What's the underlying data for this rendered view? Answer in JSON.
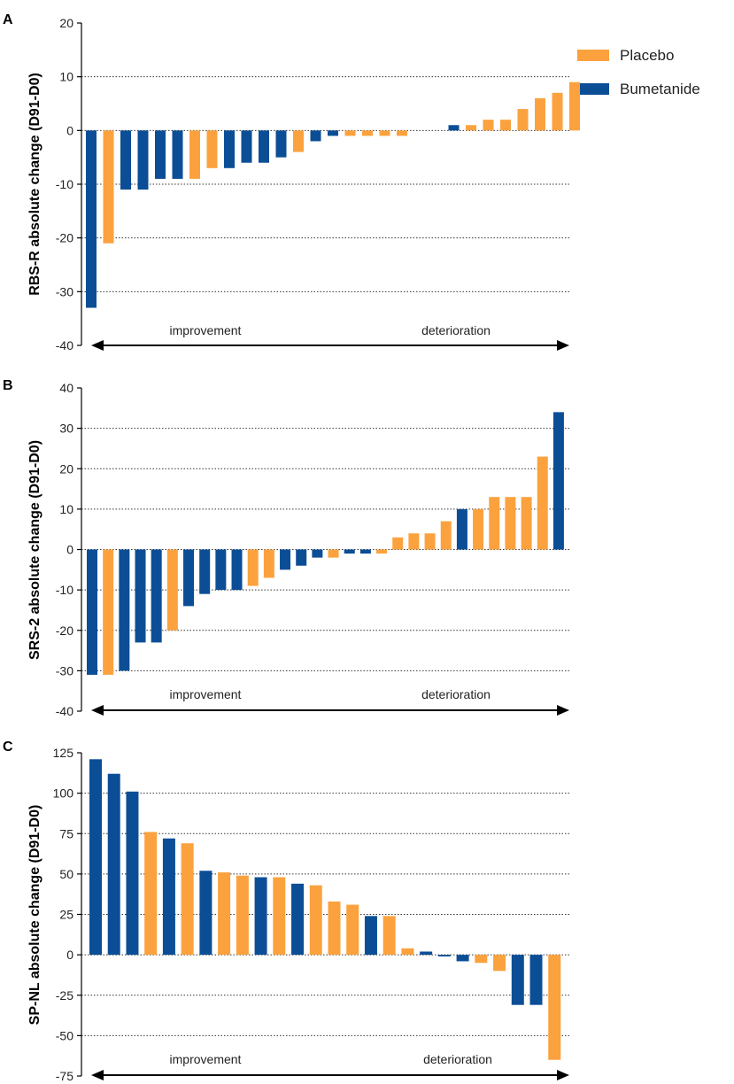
{
  "legend": {
    "items": [
      {
        "label": "Placebo",
        "color": "#FBA23E"
      },
      {
        "label": "Bumetanide",
        "color": "#0B4E96"
      }
    ]
  },
  "colors": {
    "placebo": "#FBA23E",
    "bumetanide": "#0B4E96",
    "axis": "#000000",
    "grid": "#333333"
  },
  "chart_data": [
    {
      "panel": "A",
      "type": "bar",
      "ylabel": "RBS-R absolute change (D91-D0)",
      "ylim": [
        -40,
        20
      ],
      "yticks": [
        -40,
        -30,
        -20,
        -10,
        0,
        10,
        20
      ],
      "tick_labels": [
        "-40",
        "-30",
        "-20",
        "-10",
        "0",
        "10",
        "20"
      ],
      "gridlines": [
        -30,
        -20,
        -10,
        0,
        10
      ],
      "arrow_labels": {
        "left": "improvement",
        "right": "deterioration"
      },
      "bars": [
        {
          "group": "Bumetanide",
          "value": -33
        },
        {
          "group": "Placebo",
          "value": -21
        },
        {
          "group": "Bumetanide",
          "value": -11
        },
        {
          "group": "Bumetanide",
          "value": -11
        },
        {
          "group": "Bumetanide",
          "value": -9
        },
        {
          "group": "Bumetanide",
          "value": -9
        },
        {
          "group": "Placebo",
          "value": -9
        },
        {
          "group": "Placebo",
          "value": -7
        },
        {
          "group": "Bumetanide",
          "value": -7
        },
        {
          "group": "Bumetanide",
          "value": -6
        },
        {
          "group": "Bumetanide",
          "value": -6
        },
        {
          "group": "Bumetanide",
          "value": -5
        },
        {
          "group": "Placebo",
          "value": -4
        },
        {
          "group": "Bumetanide",
          "value": -2
        },
        {
          "group": "Bumetanide",
          "value": -1
        },
        {
          "group": "Placebo",
          "value": -1
        },
        {
          "group": "Placebo",
          "value": -1
        },
        {
          "group": "Placebo",
          "value": -1
        },
        {
          "group": "Placebo",
          "value": -1
        },
        {
          "group": "Bumetanide",
          "value": 0
        },
        {
          "group": "Bumetanide",
          "value": 0
        },
        {
          "group": "Bumetanide",
          "value": 1
        },
        {
          "group": "Placebo",
          "value": 1
        },
        {
          "group": "Placebo",
          "value": 2
        },
        {
          "group": "Placebo",
          "value": 2
        },
        {
          "group": "Placebo",
          "value": 4
        },
        {
          "group": "Placebo",
          "value": 6
        },
        {
          "group": "Placebo",
          "value": 7
        },
        {
          "group": "Placebo",
          "value": 9
        }
      ]
    },
    {
      "panel": "B",
      "type": "bar",
      "ylabel": "SRS-2 absolute change (D91-D0)",
      "ylim": [
        -40,
        40
      ],
      "yticks": [
        -40,
        -30,
        -20,
        -10,
        0,
        10,
        20,
        30,
        40
      ],
      "tick_labels": [
        "-40",
        "-30",
        "-20",
        "-10",
        "0",
        "10",
        "20",
        "30",
        "40"
      ],
      "gridlines": [
        -30,
        -20,
        -10,
        0,
        10,
        20,
        30
      ],
      "arrow_labels": {
        "left": "improvement",
        "right": "deterioration"
      },
      "bars": [
        {
          "group": "Bumetanide",
          "value": -31
        },
        {
          "group": "Placebo",
          "value": -31
        },
        {
          "group": "Bumetanide",
          "value": -30
        },
        {
          "group": "Bumetanide",
          "value": -23
        },
        {
          "group": "Bumetanide",
          "value": -23
        },
        {
          "group": "Placebo",
          "value": -20
        },
        {
          "group": "Bumetanide",
          "value": -14
        },
        {
          "group": "Bumetanide",
          "value": -11
        },
        {
          "group": "Bumetanide",
          "value": -10
        },
        {
          "group": "Bumetanide",
          "value": -10
        },
        {
          "group": "Placebo",
          "value": -9
        },
        {
          "group": "Placebo",
          "value": -7
        },
        {
          "group": "Bumetanide",
          "value": -5
        },
        {
          "group": "Bumetanide",
          "value": -4
        },
        {
          "group": "Bumetanide",
          "value": -2
        },
        {
          "group": "Placebo",
          "value": -2
        },
        {
          "group": "Bumetanide",
          "value": -1
        },
        {
          "group": "Bumetanide",
          "value": -1
        },
        {
          "group": "Placebo",
          "value": -1
        },
        {
          "group": "Placebo",
          "value": 3
        },
        {
          "group": "Placebo",
          "value": 4
        },
        {
          "group": "Placebo",
          "value": 4
        },
        {
          "group": "Placebo",
          "value": 7
        },
        {
          "group": "Bumetanide",
          "value": 10
        },
        {
          "group": "Placebo",
          "value": 10
        },
        {
          "group": "Placebo",
          "value": 13
        },
        {
          "group": "Placebo",
          "value": 13
        },
        {
          "group": "Placebo",
          "value": 13
        },
        {
          "group": "Placebo",
          "value": 23
        },
        {
          "group": "Bumetanide",
          "value": 34
        }
      ]
    },
    {
      "panel": "C",
      "type": "bar",
      "ylabel": "SP-NL absolute change (D91-D0)",
      "ylim": [
        -75,
        125
      ],
      "yticks": [
        -75,
        -50,
        -25,
        0,
        25,
        50,
        75,
        100,
        125
      ],
      "tick_labels": [
        "-75",
        "-50",
        "-25",
        "0",
        "25",
        "50",
        "75",
        "100",
        "125"
      ],
      "gridlines": [
        -50,
        -25,
        0,
        25,
        50,
        75,
        100
      ],
      "arrow_labels": {
        "left": "improvement",
        "right": "deterioration"
      },
      "bars": [
        {
          "group": "Bumetanide",
          "value": 121
        },
        {
          "group": "Bumetanide",
          "value": 112
        },
        {
          "group": "Bumetanide",
          "value": 101
        },
        {
          "group": "Placebo",
          "value": 76
        },
        {
          "group": "Bumetanide",
          "value": 72
        },
        {
          "group": "Placebo",
          "value": 69
        },
        {
          "group": "Bumetanide",
          "value": 52
        },
        {
          "group": "Placebo",
          "value": 51
        },
        {
          "group": "Placebo",
          "value": 49
        },
        {
          "group": "Bumetanide",
          "value": 48
        },
        {
          "group": "Placebo",
          "value": 48
        },
        {
          "group": "Bumetanide",
          "value": 44
        },
        {
          "group": "Placebo",
          "value": 43
        },
        {
          "group": "Placebo",
          "value": 33
        },
        {
          "group": "Placebo",
          "value": 31
        },
        {
          "group": "Bumetanide",
          "value": 24
        },
        {
          "group": "Placebo",
          "value": 24
        },
        {
          "group": "Placebo",
          "value": 4
        },
        {
          "group": "Bumetanide",
          "value": 2
        },
        {
          "group": "Bumetanide",
          "value": -1
        },
        {
          "group": "Bumetanide",
          "value": -4
        },
        {
          "group": "Placebo",
          "value": -5
        },
        {
          "group": "Placebo",
          "value": -10
        },
        {
          "group": "Bumetanide",
          "value": -31
        },
        {
          "group": "Bumetanide",
          "value": -31
        },
        {
          "group": "Placebo",
          "value": -65
        }
      ]
    }
  ]
}
